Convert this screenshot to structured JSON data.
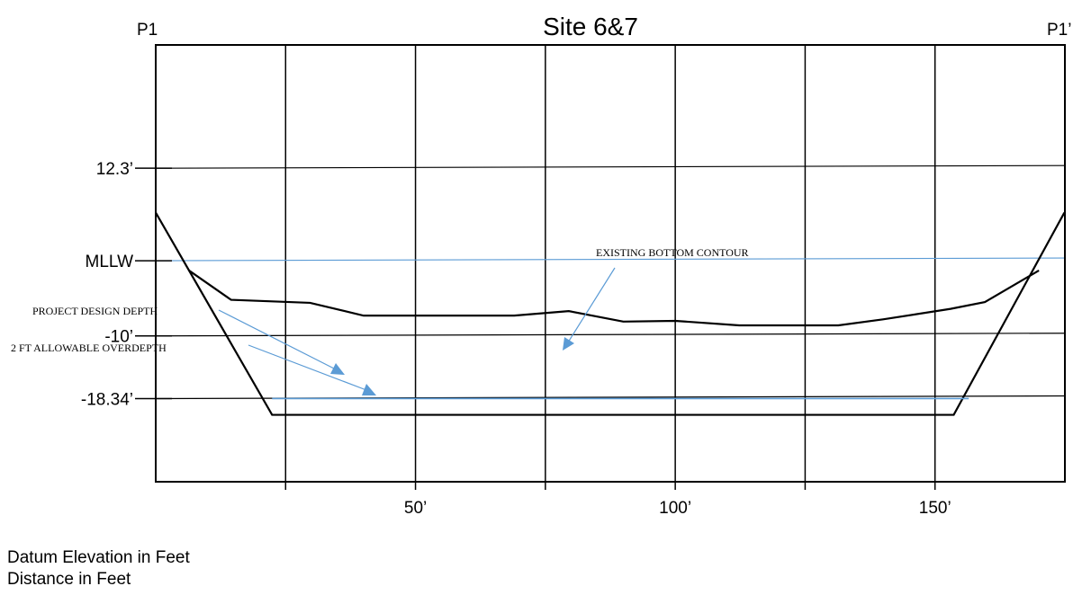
{
  "chart_data": {
    "type": "line",
    "title": "Site 6&7",
    "endpoint_labels": {
      "left": "P1",
      "right": "P1’"
    },
    "xlim": [
      0,
      175
    ],
    "x_ticks": [
      {
        "value": 50,
        "label": "50’"
      },
      {
        "value": 100,
        "label": "100’"
      },
      {
        "value": 150,
        "label": "150’"
      }
    ],
    "x_gridlines": [
      25,
      50,
      75,
      100,
      125,
      150
    ],
    "ylim": [
      -29.4,
      28.7
    ],
    "y_ticks": [
      {
        "value": 12.3,
        "label": "12.3’",
        "color": "#000000"
      },
      {
        "value": 0,
        "label": "MLLW",
        "color": "#5b9bd5"
      },
      {
        "value": -10,
        "label": "-10’",
        "color": "#000000"
      },
      {
        "value": -18.34,
        "label": "-18.34’",
        "color": "#000000"
      }
    ],
    "series": [
      {
        "name": "EXISTING BOTTOM CONTOUR",
        "color": "#000000",
        "x": [
          6.4,
          14.5,
          29.7,
          40,
          50,
          61.2,
          69,
          79.5,
          90,
          100,
          112.3,
          131.4,
          140,
          153,
          159.6,
          170
        ],
        "y": [
          -1.3,
          -5.2,
          -5.6,
          -7.3,
          -7.3,
          -7.3,
          -7.3,
          -6.7,
          -8.1,
          -8,
          -8.6,
          -8.6,
          -7.8,
          -6.4,
          -5.5,
          -1.3
        ]
      },
      {
        "name": "PROJECT DESIGN DEPTH",
        "color": "#000000",
        "x": [
          0,
          22.4,
          40,
          60,
          80,
          100,
          120,
          140,
          153.6,
          174.9
        ],
        "y": [
          6.4,
          -20.5,
          -20.5,
          -20.5,
          -20.5,
          -20.5,
          -20.5,
          -20.5,
          -20.5,
          6.4
        ]
      },
      {
        "name": "2 FT ALLOWABLE OVERDEPTH",
        "color": "#5b9bd5",
        "x": [
          22.4,
          50,
          100,
          156.5
        ],
        "y": [
          -18.34,
          -18.34,
          -18.34,
          -18.34
        ]
      }
    ],
    "annotations": [
      "EXISTING BOTTOM CONTOUR",
      "PROJECT DESIGN DEPTH",
      "2 FT ALLOWABLE OVERDEPTH"
    ],
    "legend": "none",
    "grid": true
  },
  "footnotes": {
    "ylabel": "Datum Elevation in Feet",
    "xlabel": "Distance in Feet"
  }
}
